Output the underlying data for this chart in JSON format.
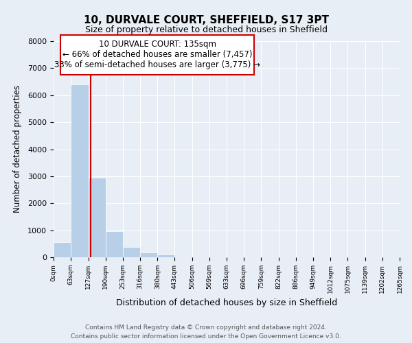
{
  "title": "10, DURVALE COURT, SHEFFIELD, S17 3PT",
  "subtitle": "Size of property relative to detached houses in Sheffield",
  "xlabel": "Distribution of detached houses by size in Sheffield",
  "ylabel": "Number of detached properties",
  "bar_values": [
    550,
    6400,
    2950,
    975,
    390,
    175,
    100,
    0,
    0,
    0,
    0,
    0,
    0,
    0,
    0,
    0,
    0,
    0,
    0,
    0
  ],
  "bin_edges": [
    0,
    63,
    127,
    190,
    253,
    316,
    380,
    443,
    506,
    569,
    633,
    696,
    759,
    822,
    886,
    949,
    1012,
    1075,
    1139,
    1202,
    1265
  ],
  "tick_labels": [
    "0sqm",
    "63sqm",
    "127sqm",
    "190sqm",
    "253sqm",
    "316sqm",
    "380sqm",
    "443sqm",
    "506sqm",
    "569sqm",
    "633sqm",
    "696sqm",
    "759sqm",
    "822sqm",
    "886sqm",
    "949sqm",
    "1012sqm",
    "1075sqm",
    "1139sqm",
    "1202sqm",
    "1265sqm"
  ],
  "bar_color": "#b8cfe8",
  "bar_edge_color": "white",
  "bg_color": "#e8eef5",
  "property_line_x": 135,
  "property_line_color": "#cc0000",
  "ann_line1": "10 DURVALE COURT: 135sqm",
  "ann_line2": "← 66% of detached houses are smaller (7,457)",
  "ann_line3": "33% of semi-detached houses are larger (3,775) →",
  "ylim": [
    0,
    8000
  ],
  "yticks": [
    0,
    1000,
    2000,
    3000,
    4000,
    5000,
    6000,
    7000,
    8000
  ],
  "footer_line1": "Contains HM Land Registry data © Crown copyright and database right 2024.",
  "footer_line2": "Contains public sector information licensed under the Open Government Licence v3.0."
}
